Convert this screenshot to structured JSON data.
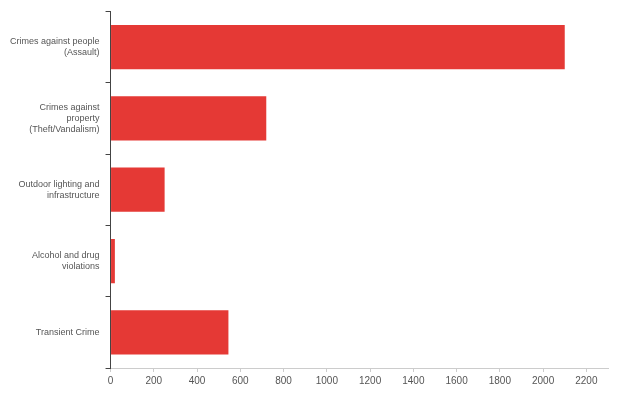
{
  "chart_data": {
    "type": "bar",
    "orientation": "horizontal",
    "categories": [
      "Crimes against people (Assault)",
      "Crimes against property (Theft/Vandalism)",
      "Outdoor lighting and infrastructure",
      "Alcohol and drug violations",
      "Transient Crime"
    ],
    "values": [
      2100,
      720,
      250,
      20,
      545
    ],
    "color": "#e53935",
    "xlim": [
      0,
      2300
    ],
    "xticks": [
      0,
      200,
      400,
      600,
      800,
      1000,
      1200,
      1400,
      1600,
      1800,
      2000,
      2200
    ],
    "grid": false
  }
}
